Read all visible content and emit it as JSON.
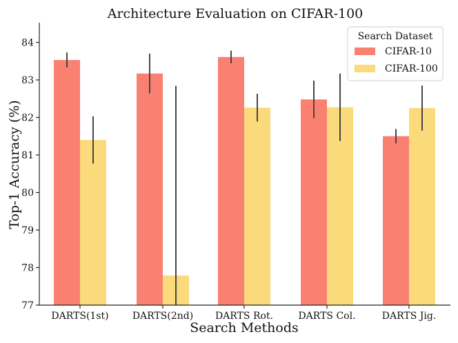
{
  "chart_data": {
    "type": "bar",
    "title": "Architecture Evaluation on CIFAR-100",
    "xlabel": "Search Methods",
    "ylabel": "Top-1 Accuracy (%)",
    "ylim": [
      77,
      84.5
    ],
    "yticks": [
      77,
      78,
      79,
      80,
      81,
      82,
      83,
      84
    ],
    "grid": false,
    "categories": [
      "DARTS(1st)",
      "DARTS(2nd)",
      "DARTS Rot.",
      "DARTS Col.",
      "DARTS Jig."
    ],
    "legend": {
      "title": "Search Dataset",
      "position": "top-right"
    },
    "series": [
      {
        "name": "CIFAR-10",
        "color": "#FA8072",
        "values": [
          83.53,
          83.17,
          83.61,
          82.48,
          81.5
        ],
        "error": [
          0.2,
          0.53,
          0.17,
          0.5,
          0.19
        ]
      },
      {
        "name": "CIFAR-100",
        "color": "#FADA7A",
        "values": [
          81.4,
          77.79,
          82.26,
          82.27,
          82.25
        ],
        "error": [
          0.63,
          5.05,
          0.37,
          0.9,
          0.6
        ]
      }
    ]
  }
}
